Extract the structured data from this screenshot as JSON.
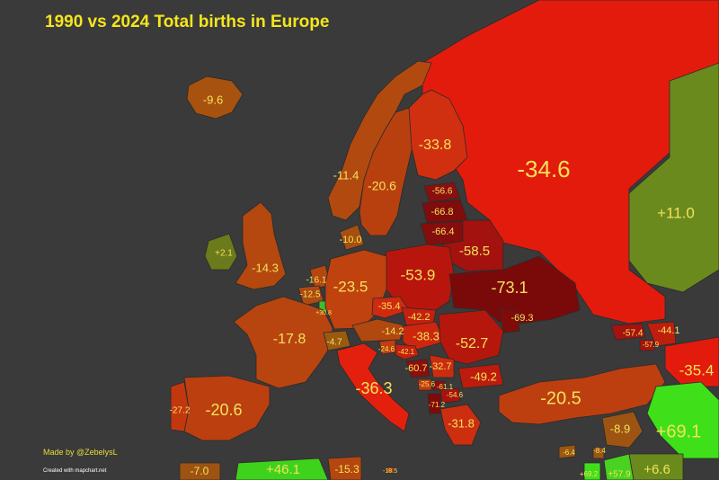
{
  "title": "1990 vs 2024 Total births in Europe",
  "credit": "Made by @ZebelysL",
  "credit_sub": "Created with mapchart.net",
  "colors": {
    "sea": "#3a3a3a",
    "border": "#2b2b2b",
    "title": "#f5e51c",
    "label": "#f3e25a"
  },
  "regions": [
    {
      "id": "russia",
      "name": "Russia",
      "value": "-34.6",
      "color": "#e31b0d"
    },
    {
      "id": "kazakhstan",
      "name": "Kazakhstan",
      "value": "+11.0",
      "color": "#6b8a1d"
    },
    {
      "id": "iceland",
      "name": "Iceland",
      "value": "-9.6",
      "color": "#a8520f"
    },
    {
      "id": "norway",
      "name": "Norway",
      "value": "-11.4",
      "color": "#b24a10"
    },
    {
      "id": "sweden",
      "name": "Sweden",
      "value": "-20.6",
      "color": "#b8400f"
    },
    {
      "id": "finland",
      "name": "Finland",
      "value": "-33.8",
      "color": "#d0300f"
    },
    {
      "id": "estonia",
      "name": "Estonia",
      "value": "-56.6",
      "color": "#8c0f0f"
    },
    {
      "id": "latvia",
      "name": "Latvia",
      "value": "-66.8",
      "color": "#800c0c"
    },
    {
      "id": "lithuania",
      "name": "Lithuania",
      "value": "-66.4",
      "color": "#860d0d"
    },
    {
      "id": "belarus",
      "name": "Belarus",
      "value": "-58.5",
      "color": "#a3120e"
    },
    {
      "id": "poland",
      "name": "Poland",
      "value": "-53.9",
      "color": "#b8160d"
    },
    {
      "id": "ukraine",
      "name": "Ukraine",
      "value": "-73.1",
      "color": "#7a0a0a"
    },
    {
      "id": "moldova",
      "name": "Moldova",
      "value": "-69.3",
      "color": "#800b0b"
    },
    {
      "id": "denmark",
      "name": "Denmark",
      "value": "-10.0",
      "color": "#a5500f"
    },
    {
      "id": "ireland",
      "name": "Ireland",
      "value": "+2.1",
      "color": "#6b7a1a"
    },
    {
      "id": "uk",
      "name": "United Kingdom",
      "value": "-14.3",
      "color": "#b4480f"
    },
    {
      "id": "netherlands",
      "name": "Netherlands",
      "value": "-16.1",
      "color": "#b4460f"
    },
    {
      "id": "belgium",
      "name": "Belgium",
      "value": "-12.5",
      "color": "#ad4a10"
    },
    {
      "id": "luxembourg",
      "name": "Luxembourg",
      "value": "+30.8",
      "color": "#3fbf2a"
    },
    {
      "id": "germany",
      "name": "Germany",
      "value": "-23.5",
      "color": "#c0420f"
    },
    {
      "id": "czechia",
      "name": "Czechia",
      "value": "-35.4",
      "color": "#cf2a0f"
    },
    {
      "id": "slovakia",
      "name": "Slovakia",
      "value": "-42.2",
      "color": "#c5200e"
    },
    {
      "id": "austria",
      "name": "Austria",
      "value": "-14.2",
      "color": "#b0480f"
    },
    {
      "id": "hungary",
      "name": "Hungary",
      "value": "-38.3",
      "color": "#cc260f"
    },
    {
      "id": "romania",
      "name": "Romania",
      "value": "-52.7",
      "color": "#b6170d"
    },
    {
      "id": "france",
      "name": "France",
      "value": "-17.8",
      "color": "#b8450f"
    },
    {
      "id": "switzerland",
      "name": "Switzerland",
      "value": "-4.7",
      "color": "#9a5a12"
    },
    {
      "id": "slovenia",
      "name": "Slovenia",
      "value": "-24.6",
      "color": "#c23d0f"
    },
    {
      "id": "croatia",
      "name": "Croatia",
      "value": "-42.1",
      "color": "#c5200e"
    },
    {
      "id": "bosnia",
      "name": "Bosnia and Herzegovina",
      "value": "-60.7",
      "color": "#8e0d0d"
    },
    {
      "id": "serbia",
      "name": "Serbia",
      "value": "-32.7",
      "color": "#cb2c0f"
    },
    {
      "id": "montenegro",
      "name": "Montenegro",
      "value": "-25.6",
      "color": "#c23c0f"
    },
    {
      "id": "kosovo",
      "name": "Kosovo",
      "value": "-61.1",
      "color": "#8c0d0d"
    },
    {
      "id": "north-macedonia",
      "name": "North Macedonia",
      "value": "-54.6",
      "color": "#a8130e"
    },
    {
      "id": "albania",
      "name": "Albania",
      "value": "-71.2",
      "color": "#800a0a"
    },
    {
      "id": "bulgaria",
      "name": "Bulgaria",
      "value": "-49.2",
      "color": "#bd1b0d"
    },
    {
      "id": "greece",
      "name": "Greece",
      "value": "-31.8",
      "color": "#cc2e0f"
    },
    {
      "id": "italy",
      "name": "Italy",
      "value": "-36.3",
      "color": "#e3200d"
    },
    {
      "id": "spain",
      "name": "Spain",
      "value": "-20.6",
      "color": "#bb3f0f"
    },
    {
      "id": "portugal",
      "name": "Portugal",
      "value": "-27.2",
      "color": "#c3370f"
    },
    {
      "id": "turkey",
      "name": "Turkey",
      "value": "-20.5",
      "color": "#bd3f0f"
    },
    {
      "id": "georgia",
      "name": "Georgia",
      "value": "-57.4",
      "color": "#a4130e"
    },
    {
      "id": "armenia",
      "name": "Armenia",
      "value": "-57.9",
      "color": "#a4130e"
    },
    {
      "id": "azerbaijan",
      "name": "Azerbaijan",
      "value": "-44.1",
      "color": "#c01e0d"
    },
    {
      "id": "iran",
      "name": "Iran",
      "value": "-35.4",
      "color": "#e31b0d"
    },
    {
      "id": "iraq",
      "name": "Iraq",
      "value": "+69.1",
      "color": "#3fe01a"
    },
    {
      "id": "syria",
      "name": "Syria",
      "value": "-8.9",
      "color": "#9d5412"
    },
    {
      "id": "cyprus",
      "name": "Cyprus",
      "value": "-6.4",
      "color": "#9a5612"
    },
    {
      "id": "lebanon",
      "name": "Lebanon",
      "value": "-8.4",
      "color": "#9a5612"
    },
    {
      "id": "israel",
      "name": "Israel",
      "value": "+69.2",
      "color": "#3fe01a"
    },
    {
      "id": "jordan",
      "name": "Jordan",
      "value": "+57.9",
      "color": "#49d21f"
    },
    {
      "id": "saudi",
      "name": "Saudi Arabia",
      "value": "+6.6",
      "color": "#6a8a1c"
    },
    {
      "id": "algeria",
      "name": "Algeria",
      "value": "+46.1",
      "color": "#3fd21c"
    },
    {
      "id": "tunisia",
      "name": "Tunisia",
      "value": "-15.3",
      "color": "#b4460f"
    },
    {
      "id": "morocco",
      "name": "Morocco",
      "value": "-7.0",
      "color": "#9e5312"
    },
    {
      "id": "malta",
      "name": "Malta",
      "value": "-18.5",
      "color": "#b8440f"
    }
  ]
}
